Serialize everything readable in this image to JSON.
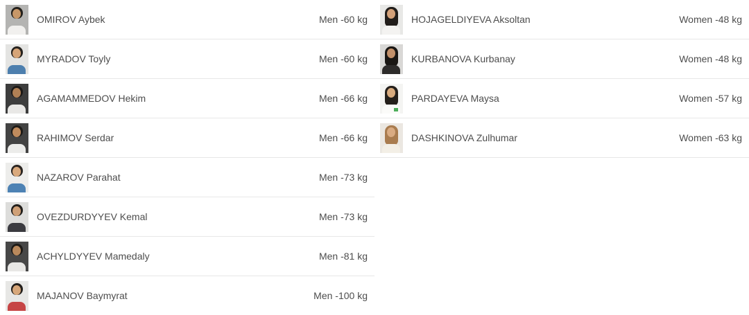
{
  "colors": {
    "page_bg": "#ffffff",
    "text": "#4d4d4d",
    "divider": "#e7e7e7"
  },
  "men": [
    {
      "name": "OMIROV Aybek",
      "category": "Men -60 kg",
      "avatar": {
        "bg": "#b4b4b2",
        "hair": "#23201c",
        "skin": "#c79768",
        "shirt": "#f1f0ee",
        "hair_style": "short"
      }
    },
    {
      "name": "MYRADOV Toyly",
      "category": "Men -60 kg",
      "avatar": {
        "bg": "#e4e4e2",
        "hair": "#26221e",
        "skin": "#d5a478",
        "shirt": "#4d7fae",
        "hair_style": "short"
      }
    },
    {
      "name": "AGAMAMMEDOV Hekim",
      "category": "Men -66 kg",
      "avatar": {
        "bg": "#3d3d3d",
        "hair": "#1c1917",
        "skin": "#b08055",
        "shirt": "#e9e8e6",
        "hair_style": "short"
      }
    },
    {
      "name": "RAHIMOV Serdar",
      "category": "Men -66 kg",
      "avatar": {
        "bg": "#434343",
        "hair": "#1e1b18",
        "skin": "#c08b5d",
        "shirt": "#ececea",
        "hair_style": "short"
      }
    },
    {
      "name": "NAZAROV Parahat",
      "category": "Men -73 kg",
      "avatar": {
        "bg": "#ededeb",
        "hair": "#2a2522",
        "skin": "#d9a97d",
        "shirt": "#4d82b4",
        "hair_style": "short"
      }
    },
    {
      "name": "OVEZDURDYYEV Kemal",
      "category": "Men -73 kg",
      "avatar": {
        "bg": "#dddddb",
        "hair": "#221f1c",
        "skin": "#cfa077",
        "shirt": "#3b3b40",
        "hair_style": "short"
      }
    },
    {
      "name": "ACHYLDYYEV Mamedaly",
      "category": "Men -81 kg",
      "avatar": {
        "bg": "#474747",
        "hair": "#1d1a17",
        "skin": "#b9895c",
        "shirt": "#e8e7e5",
        "hair_style": "short"
      }
    },
    {
      "name": "MAJANOV Baymyrat",
      "category": "Men -100 kg",
      "avatar": {
        "bg": "#e7e7e5",
        "hair": "#25211d",
        "skin": "#d7a77a",
        "shirt": "#c64545",
        "hair_style": "short"
      }
    }
  ],
  "women": [
    {
      "name": "HOJAGELDIYEVA Aksoltan",
      "category": "Women -48 kg",
      "avatar": {
        "bg": "#e8e8e6",
        "hair": "#211d1a",
        "skin": "#d3a179",
        "shirt": "#f4f3f1",
        "hair_style": "long"
      }
    },
    {
      "name": "KURBANOVA Kurbanay",
      "category": "Women -48 kg",
      "avatar": {
        "bg": "#d9d8d6",
        "hair": "#191613",
        "skin": "#c2906a",
        "shirt": "#2d2b2a",
        "hair_style": "long"
      }
    },
    {
      "name": "PARDAYEVA Maysa",
      "category": "Women -57 kg",
      "avatar": {
        "bg": "#f4f4f2",
        "hair": "#241f1b",
        "skin": "#d8ab7e",
        "shirt": "#fbfbf9",
        "badge": "#4cae5a",
        "hair_style": "long"
      }
    },
    {
      "name": "DASHKINOVA Zulhumar",
      "category": "Women -63 kg",
      "avatar": {
        "bg": "#ebe7e1",
        "hair": "#a97c4f",
        "skin": "#d9ab82",
        "shirt": "#f3efe6",
        "hair_style": "long"
      }
    }
  ]
}
